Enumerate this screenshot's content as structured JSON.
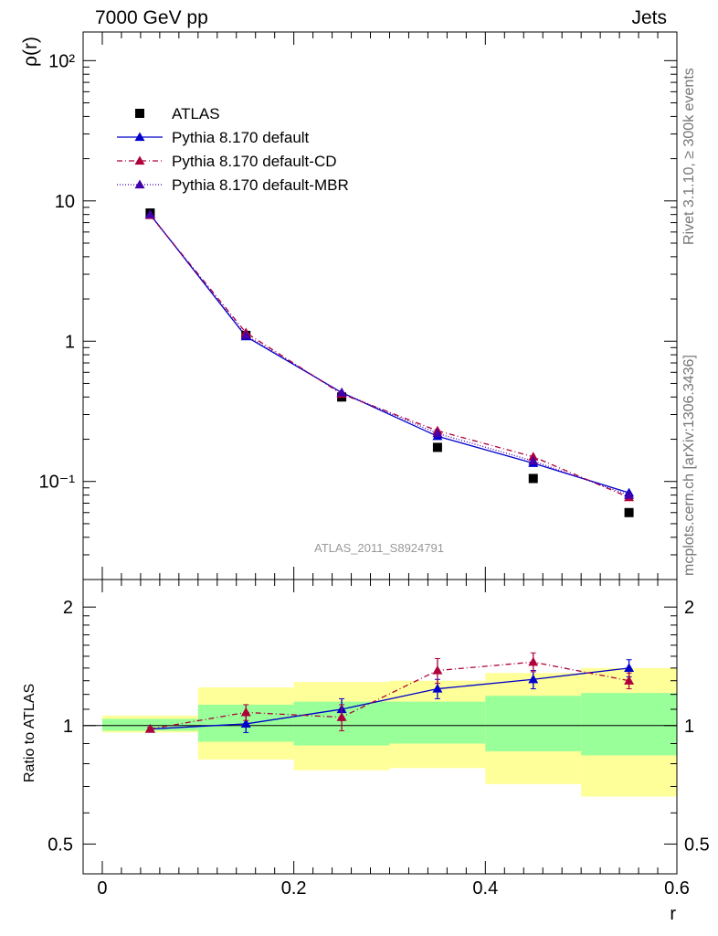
{
  "header": {
    "left": "7000 GeV pp",
    "right": "Jets"
  },
  "side_labels": {
    "rivet": "Rivet 3.1.10, ≥ 300k events",
    "mcplots": "mcplots.cern.ch [arXiv:1306.3436]"
  },
  "watermark": "ATLAS_2011_S8924791",
  "chart_data": [
    {
      "type": "scatter",
      "panel": "main",
      "ylabel": "ρ(r)",
      "yscale": "log",
      "ylim": [
        0.02,
        160
      ],
      "xlim": [
        -0.02,
        0.6
      ],
      "x": [
        0.05,
        0.15,
        0.25,
        0.35,
        0.45,
        0.55
      ],
      "ytick_labels": [
        "10⁻¹",
        "1",
        "10",
        "10²"
      ],
      "legend_position": "top-left",
      "series": [
        {
          "name": "ATLAS",
          "values": [
            8.2,
            1.1,
            0.4,
            0.175,
            0.105,
            0.06
          ],
          "color": "#000000",
          "marker": "square"
        },
        {
          "name": "Pythia 8.170 default",
          "values": [
            8.0,
            1.08,
            0.43,
            0.21,
            0.135,
            0.083
          ],
          "color": "#0000cc",
          "marker": "triangle",
          "line": "solid"
        },
        {
          "name": "Pythia 8.170 default-CD",
          "values": [
            7.9,
            1.15,
            0.42,
            0.23,
            0.15,
            0.077
          ],
          "color": "#b0003a",
          "marker": "triangle",
          "line": "dashdot"
        },
        {
          "name": "Pythia 8.170 default-MBR",
          "values": [
            8.0,
            1.1,
            0.43,
            0.22,
            0.14,
            0.08
          ],
          "color": "#4400aa",
          "marker": "triangle",
          "line": "dotted"
        }
      ]
    },
    {
      "type": "line",
      "panel": "ratio",
      "ylabel": "Ratio to ATLAS",
      "xlabel": "r",
      "yscale": "log",
      "ylim": [
        0.42,
        2.35
      ],
      "xlim": [
        -0.02,
        0.6
      ],
      "ytick_labels": [
        "0.5",
        "1",
        "2"
      ],
      "xtick_labels": [
        "0",
        "0.2",
        "0.4",
        "0.6"
      ],
      "bands": [
        {
          "x0": 0.0,
          "x1": 0.1,
          "yellow": [
            0.96,
            1.06
          ],
          "green": [
            0.97,
            1.04
          ]
        },
        {
          "x0": 0.1,
          "x1": 0.2,
          "yellow": [
            0.82,
            1.25
          ],
          "green": [
            0.91,
            1.13
          ]
        },
        {
          "x0": 0.2,
          "x1": 0.3,
          "yellow": [
            0.77,
            1.29
          ],
          "green": [
            0.89,
            1.15
          ]
        },
        {
          "x0": 0.3,
          "x1": 0.4,
          "yellow": [
            0.78,
            1.3
          ],
          "green": [
            0.9,
            1.15
          ]
        },
        {
          "x0": 0.4,
          "x1": 0.5,
          "yellow": [
            0.71,
            1.36
          ],
          "green": [
            0.86,
            1.19
          ]
        },
        {
          "x0": 0.5,
          "x1": 0.6,
          "yellow": [
            0.66,
            1.4
          ],
          "green": [
            0.84,
            1.21
          ]
        }
      ],
      "series": [
        {
          "name": "Pythia 8.170 default",
          "x": [
            0.05,
            0.15,
            0.25,
            0.35,
            0.45,
            0.55
          ],
          "values": [
            0.98,
            1.01,
            1.1,
            1.24,
            1.31,
            1.4
          ],
          "errors": [
            0.01,
            0.05,
            0.07,
            0.07,
            0.07,
            0.07
          ],
          "color": "#0000cc",
          "line": "solid"
        },
        {
          "name": "Pythia 8.170 default-CD",
          "x": [
            0.05,
            0.15,
            0.25,
            0.35,
            0.45,
            0.55
          ],
          "values": [
            0.98,
            1.08,
            1.05,
            1.38,
            1.45,
            1.3
          ],
          "errors": [
            0.01,
            0.05,
            0.08,
            0.1,
            0.08,
            0.06
          ],
          "color": "#b0003a",
          "line": "dashdot"
        }
      ]
    }
  ]
}
